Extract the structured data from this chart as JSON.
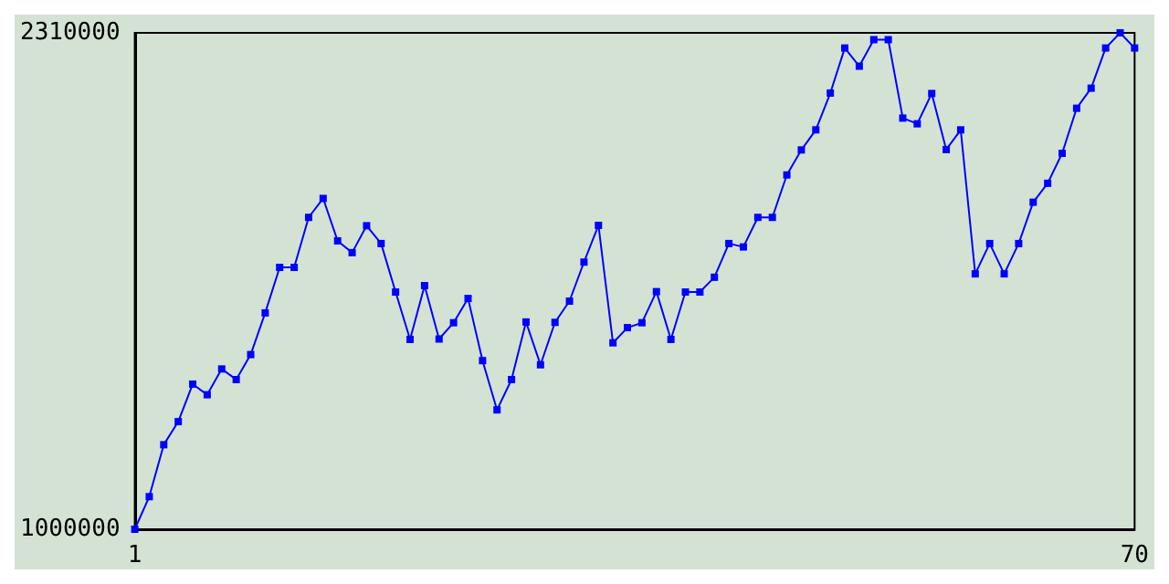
{
  "chart_data": {
    "type": "line",
    "x": [
      1,
      2,
      3,
      4,
      5,
      6,
      7,
      8,
      9,
      10,
      11,
      12,
      13,
      14,
      15,
      16,
      17,
      18,
      19,
      20,
      21,
      22,
      23,
      24,
      25,
      26,
      27,
      28,
      29,
      30,
      31,
      32,
      33,
      34,
      35,
      36,
      37,
      38,
      39,
      40,
      41,
      42,
      43,
      44,
      45,
      46,
      47,
      48,
      49,
      50,
      51,
      52,
      53,
      54,
      55,
      56,
      57,
      58,
      59,
      60,
      61,
      62,
      63,
      64,
      65,
      66,
      67,
      68,
      69,
      70
    ],
    "series": [
      {
        "color": "#0000ff",
        "values": [
          1000000,
          1086000,
          1223000,
          1284000,
          1383000,
          1355000,
          1423000,
          1395000,
          1461000,
          1571000,
          1691000,
          1691000,
          1823000,
          1873000,
          1761000,
          1730000,
          1801000,
          1754000,
          1626000,
          1501000,
          1643000,
          1502000,
          1545000,
          1609000,
          1445000,
          1315000,
          1395000,
          1547000,
          1434000,
          1546000,
          1602000,
          1705000,
          1802000,
          1492000,
          1532000,
          1545000,
          1627000,
          1501000,
          1626000,
          1626000,
          1665000,
          1754000,
          1745000,
          1823000,
          1823000,
          1935000,
          2001000,
          2054000,
          2151000,
          2270000,
          2222000,
          2292000,
          2292000,
          2085000,
          2070000,
          2150000,
          2002000,
          2054000,
          1674000,
          1754000,
          1674000,
          1754000,
          1863000,
          1913000,
          1992000,
          2111000,
          2164000,
          2270000,
          2310000,
          2270000
        ]
      }
    ],
    "xlim": [
      1,
      70
    ],
    "xticks": [
      1,
      70
    ],
    "ylim": [
      1000000,
      2310000
    ],
    "yticks": [
      1000000,
      2310000
    ],
    "grid": false,
    "marker": "square",
    "line_style": "solid"
  }
}
